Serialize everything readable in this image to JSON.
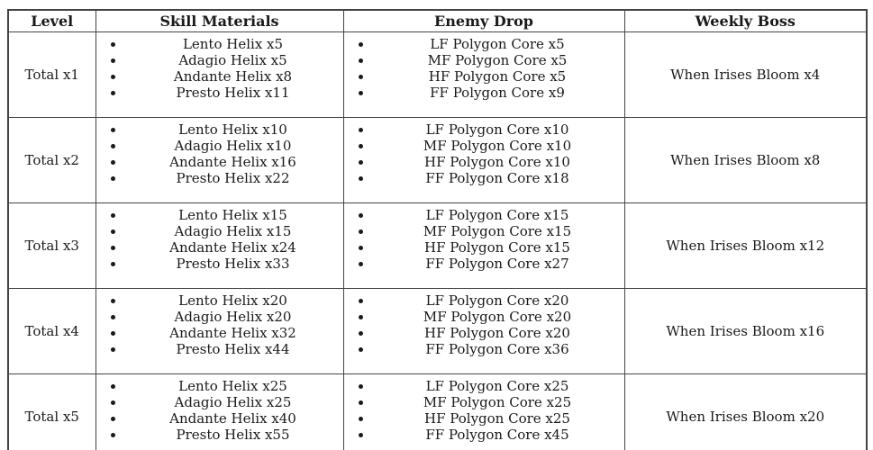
{
  "colors": {
    "border": "#444444",
    "text": "#1a1a1a",
    "background": "#ffffff"
  },
  "table": {
    "headers": [
      "Level",
      "Skill Materials",
      "Enemy Drop",
      "Weekly Boss"
    ],
    "rows": [
      {
        "level": "Total x1",
        "skill_materials": [
          "Lento Helix x5",
          "Adagio Helix x5",
          "Andante Helix x8",
          "Presto Helix x11"
        ],
        "enemy_drop": [
          "LF Polygon Core x5",
          "MF Polygon Core x5",
          "HF Polygon Core x5",
          "FF Polygon Core x9"
        ],
        "weekly_boss": "When Irises Bloom x4"
      },
      {
        "level": "Total x2",
        "skill_materials": [
          "Lento Helix x10",
          "Adagio Helix x10",
          "Andante Helix x16",
          "Presto Helix x22"
        ],
        "enemy_drop": [
          "LF Polygon Core x10",
          "MF Polygon Core x10",
          "HF Polygon Core x10",
          "FF Polygon Core x18"
        ],
        "weekly_boss": "When Irises Bloom x8"
      },
      {
        "level": "Total x3",
        "skill_materials": [
          "Lento Helix x15",
          "Adagio Helix x15",
          "Andante Helix x24",
          "Presto Helix x33"
        ],
        "enemy_drop": [
          "LF Polygon Core x15",
          "MF Polygon Core x15",
          "HF Polygon Core x15",
          "FF Polygon Core x27"
        ],
        "weekly_boss": "When Irises Bloom x12"
      },
      {
        "level": "Total x4",
        "skill_materials": [
          "Lento Helix x20",
          "Adagio Helix x20",
          "Andante Helix x32",
          "Presto Helix x44"
        ],
        "enemy_drop": [
          "LF Polygon Core x20",
          "MF Polygon Core x20",
          "HF Polygon Core x20",
          "FF Polygon Core x36"
        ],
        "weekly_boss": "When Irises Bloom x16"
      },
      {
        "level": "Total x5",
        "skill_materials": [
          "Lento Helix x25",
          "Adagio Helix x25",
          "Andante Helix x40",
          "Presto Helix x55"
        ],
        "enemy_drop": [
          "LF Polygon Core x25",
          "MF Polygon Core x25",
          "HF Polygon Core x25",
          "FF Polygon Core x45"
        ],
        "weekly_boss": "When Irises Bloom x20"
      }
    ]
  }
}
